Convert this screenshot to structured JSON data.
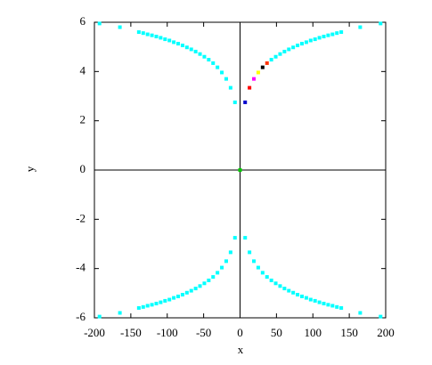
{
  "chart_data": {
    "type": "scatter",
    "x_label": "x",
    "y_label": "y",
    "xlim": [
      -200,
      200
    ],
    "ylim": [
      -6,
      6
    ],
    "xticks": [
      -200,
      -150,
      -100,
      -50,
      0,
      50,
      100,
      150,
      200
    ],
    "yticks": [
      -6,
      -4,
      -2,
      0,
      2,
      4,
      6
    ],
    "zero_axes": true,
    "series": [
      {
        "color": "#00ffff",
        "x": [
          43,
          49,
          55,
          61,
          67,
          73,
          79,
          85,
          91,
          97,
          103,
          109,
          115,
          121,
          127,
          133,
          139,
          165,
          193
        ],
        "values": [
          4.48,
          4.6,
          4.71,
          4.81,
          4.9,
          4.98,
          5.06,
          5.13,
          5.19,
          5.26,
          5.31,
          5.37,
          5.42,
          5.47,
          5.51,
          5.56,
          5.6,
          5.8,
          5.95
        ]
      },
      {
        "color": "#00ffff",
        "x": [
          -7,
          -13,
          -19,
          -25,
          -31,
          -37,
          -43,
          -49,
          -55,
          -61,
          -67,
          -73,
          -79,
          -85,
          -91,
          -97,
          -103,
          -109,
          -115,
          -121,
          -127,
          -133,
          -139,
          -165,
          -193
        ],
        "values": [
          2.75,
          3.34,
          3.7,
          3.96,
          4.17,
          4.34,
          4.48,
          4.6,
          4.71,
          4.81,
          4.9,
          4.98,
          5.06,
          5.13,
          5.19,
          5.26,
          5.31,
          5.37,
          5.42,
          5.47,
          5.51,
          5.56,
          5.6,
          5.8,
          5.95
        ]
      },
      {
        "color": "#00ffff",
        "x": [
          -7,
          -13,
          -19,
          -25,
          -31,
          -37,
          -43,
          -49,
          -55,
          -61,
          -67,
          -73,
          -79,
          -85,
          -91,
          -97,
          -103,
          -109,
          -115,
          -121,
          -127,
          -133,
          -139,
          -165,
          -193
        ],
        "values": [
          -2.75,
          -3.34,
          -3.7,
          -3.96,
          -4.17,
          -4.34,
          -4.48,
          -4.6,
          -4.71,
          -4.81,
          -4.9,
          -4.98,
          -5.06,
          -5.13,
          -5.19,
          -5.26,
          -5.31,
          -5.37,
          -5.42,
          -5.47,
          -5.51,
          -5.56,
          -5.6,
          -5.8,
          -5.95
        ]
      },
      {
        "color": "#00ffff",
        "x": [
          7,
          13,
          19,
          25,
          31,
          37,
          43,
          49,
          55,
          61,
          67,
          73,
          79,
          85,
          91,
          97,
          103,
          109,
          115,
          121,
          127,
          133,
          139,
          165,
          193
        ],
        "values": [
          -2.75,
          -3.34,
          -3.7,
          -3.96,
          -4.17,
          -4.34,
          -4.48,
          -4.6,
          -4.71,
          -4.81,
          -4.9,
          -4.98,
          -5.06,
          -5.13,
          -5.19,
          -5.26,
          -5.31,
          -5.37,
          -5.42,
          -5.47,
          -5.51,
          -5.56,
          -5.6,
          -5.8,
          -5.95
        ]
      },
      {
        "colors": [
          "#0000cc",
          "#ff0000",
          "#ff00ff",
          "#ffff00",
          "#000000",
          "#ff3300"
        ],
        "x": [
          7,
          13,
          19,
          25,
          31,
          37
        ],
        "values": [
          2.75,
          3.34,
          3.7,
          3.96,
          4.17,
          4.34
        ]
      },
      {
        "color": "#00cc00",
        "x": [
          0
        ],
        "values": [
          0
        ]
      }
    ]
  }
}
